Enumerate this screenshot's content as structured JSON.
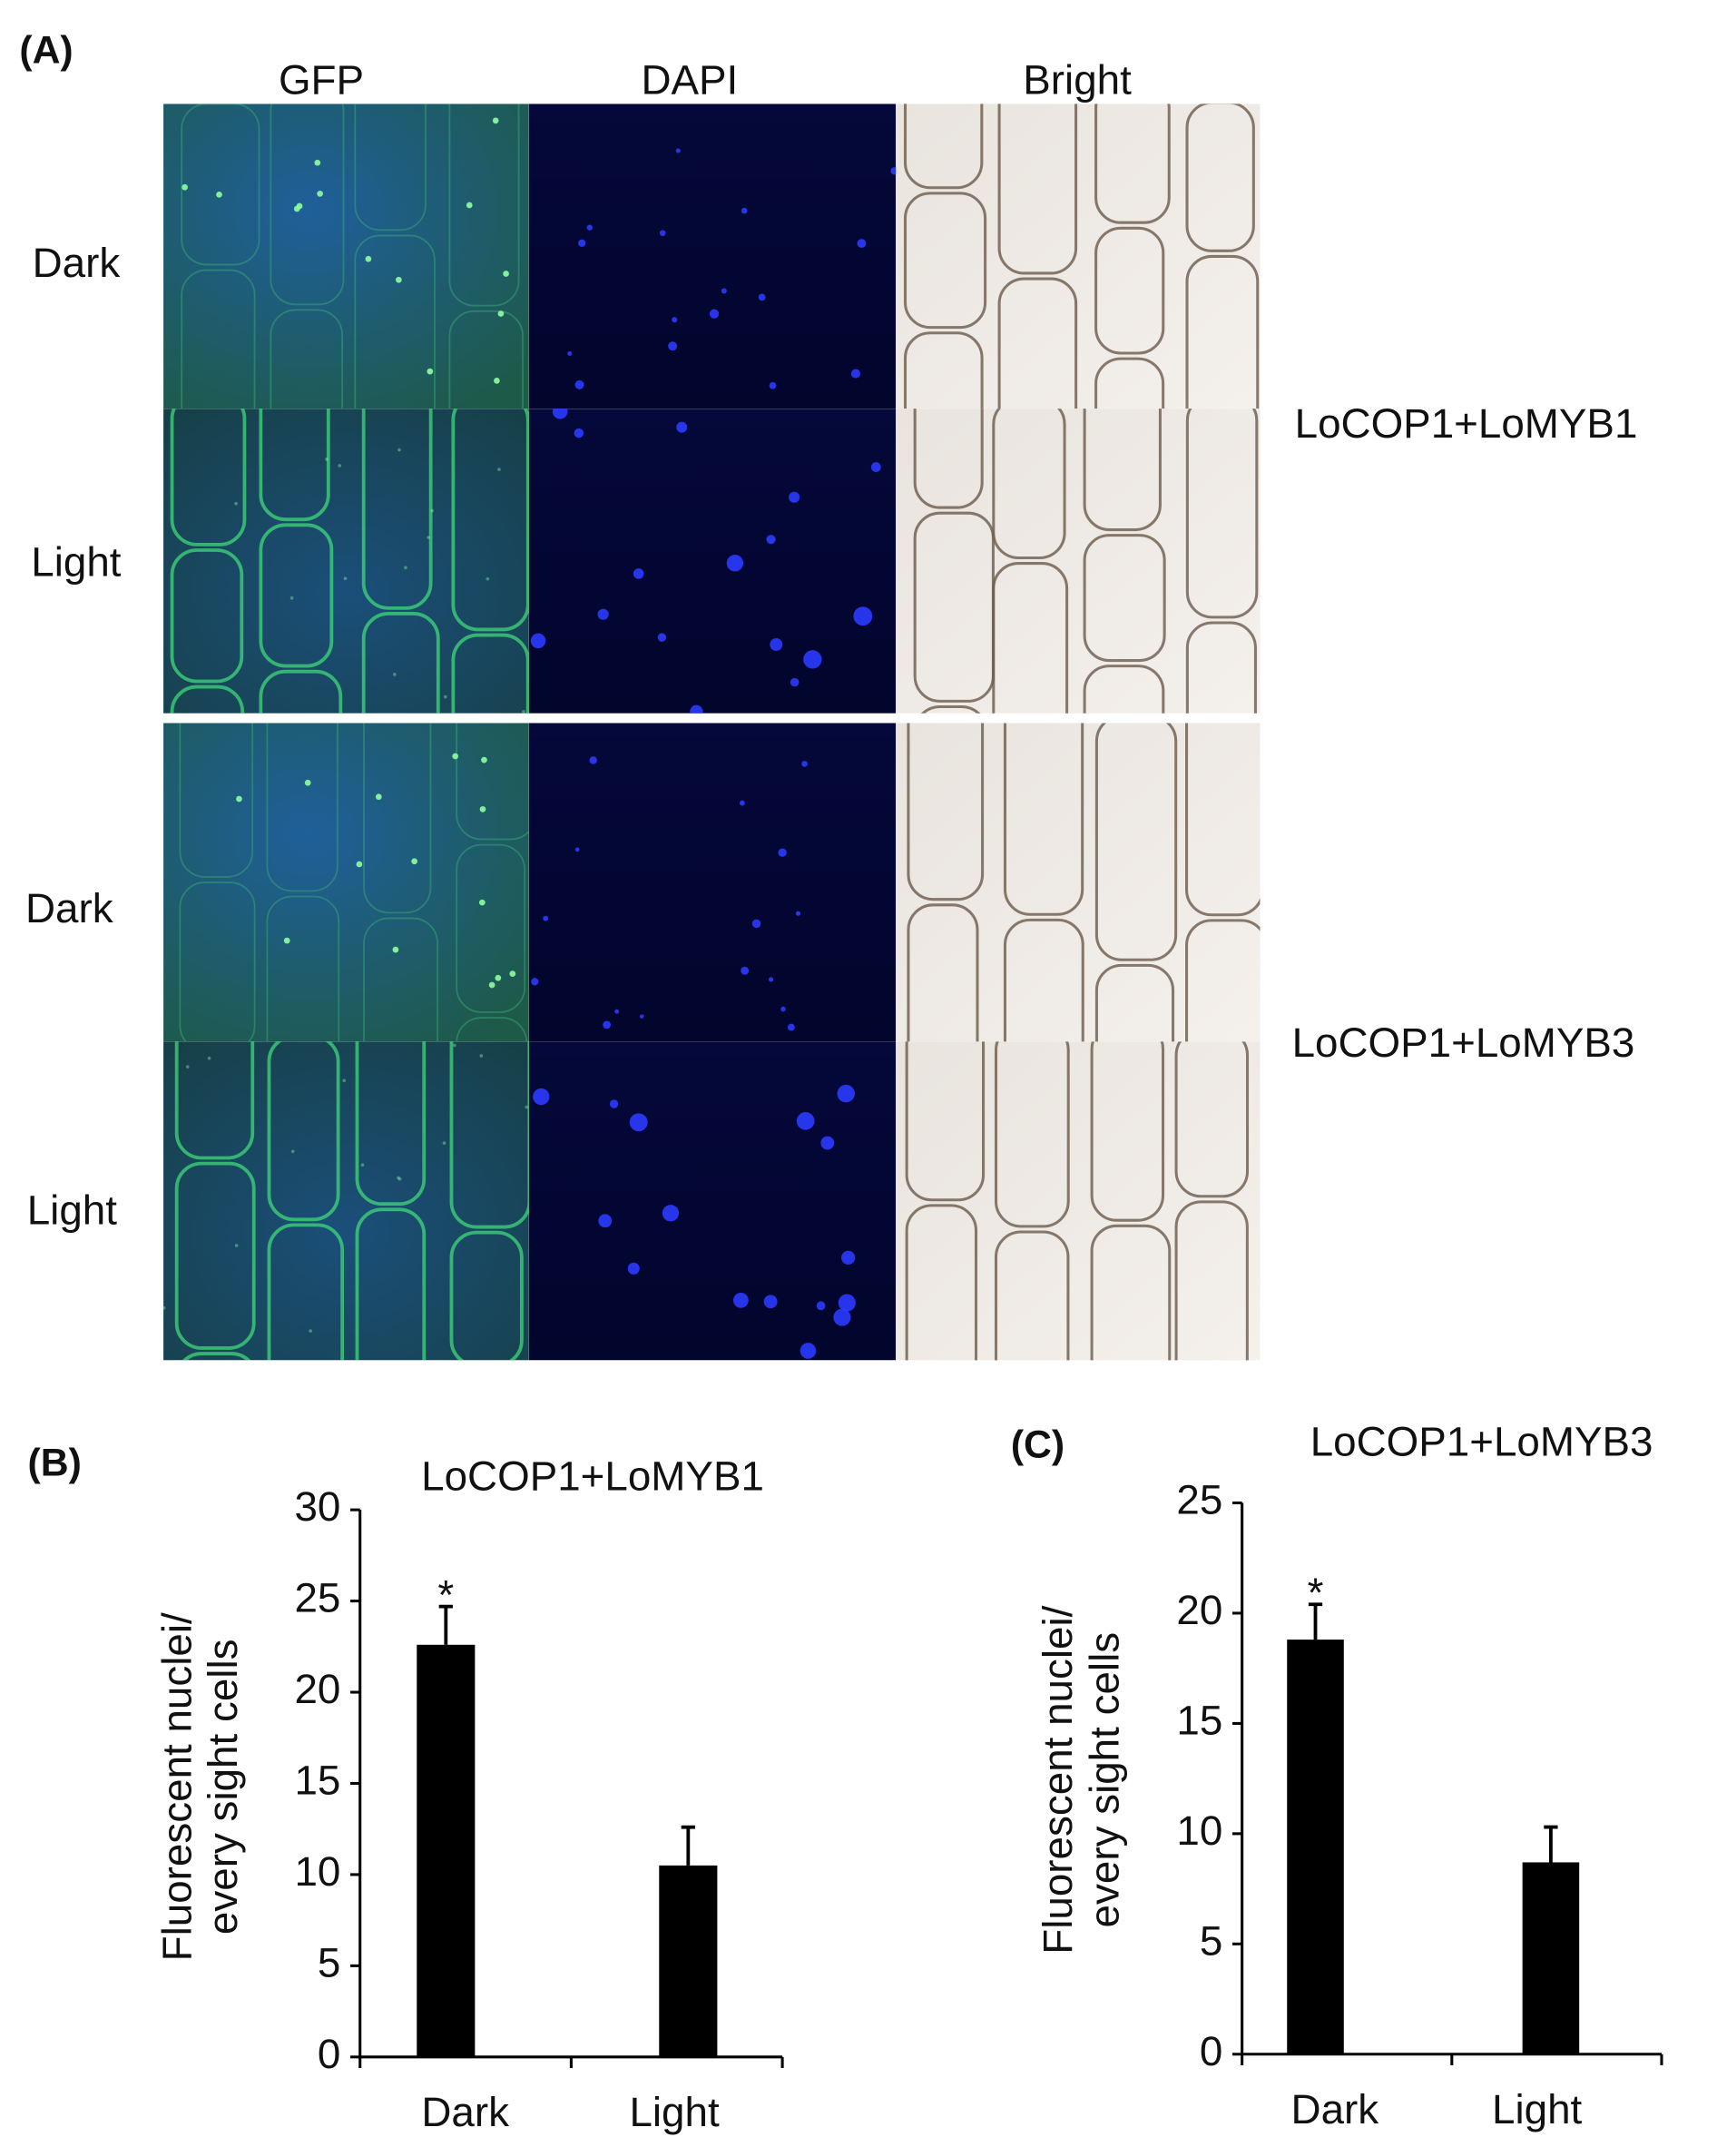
{
  "panel_a": {
    "label": "(A)",
    "columns": [
      "GFP",
      "DAPI",
      "Bright"
    ],
    "groups": [
      {
        "name": "LoCOP1+LoMYB1",
        "rows": [
          "Dark",
          "Light"
        ]
      },
      {
        "name": "LoCOP1+LoMYB3",
        "rows": [
          "Dark",
          "Light"
        ]
      }
    ]
  },
  "chart_data": [
    {
      "type": "bar",
      "panel_label": "(B)",
      "title": "LoCOP1+LoMYB1",
      "ylabel": [
        "Fluorescent nuclei/",
        "every sight cells"
      ],
      "categories": [
        "Dark",
        "Light"
      ],
      "values": [
        22.6,
        10.5
      ],
      "errors": [
        2.1,
        2.1
      ],
      "annotation": "*",
      "color": "#000000",
      "ylim": [
        0,
        30
      ],
      "yticks": [
        0,
        5,
        10,
        15,
        20,
        25,
        30
      ]
    },
    {
      "type": "bar",
      "panel_label": "(C)",
      "title": "LoCOP1+LoMYB3",
      "ylabel": [
        "Fluorescent nuclei/",
        "every sight cells"
      ],
      "categories": [
        "Dark",
        "Light"
      ],
      "values": [
        18.8,
        8.7
      ],
      "errors": [
        1.6,
        1.6
      ],
      "annotation": "*",
      "color": "#000000",
      "ylim": [
        0,
        25
      ],
      "yticks": [
        0,
        5,
        10,
        15,
        20,
        25
      ]
    }
  ]
}
